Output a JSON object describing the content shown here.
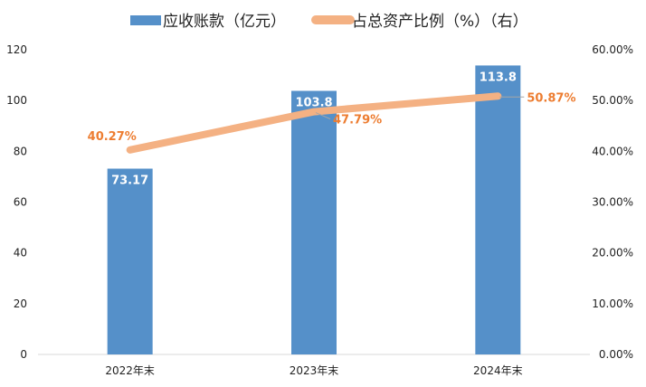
{
  "chart_data": {
    "type": "bar",
    "categories": [
      "2022年末",
      "2023年末",
      "2024年末"
    ],
    "series": [
      {
        "name": "应收账款（亿元）",
        "type": "bar",
        "axis": "left",
        "values": [
          73.17,
          103.8,
          113.8
        ],
        "labels": [
          "73.17",
          "103.8",
          "113.8"
        ],
        "color": "#5590c9"
      },
      {
        "name": "占总资产比例（%）（右）",
        "type": "line",
        "axis": "right",
        "values": [
          40.27,
          47.79,
          50.87
        ],
        "labels": [
          "40.27%",
          "47.79%",
          "50.87%"
        ],
        "color": "#f4b183",
        "label_color": "#ed7d31"
      }
    ],
    "y_left": {
      "min": 0,
      "max": 120,
      "ticks": [
        "0",
        "20",
        "40",
        "60",
        "80",
        "100",
        "120"
      ]
    },
    "y_right": {
      "min": 0,
      "max": 60,
      "ticks": [
        "0.00%",
        "10.00%",
        "20.00%",
        "30.00%",
        "40.00%",
        "50.00%",
        "60.00%"
      ]
    },
    "legend_position": "top",
    "grid": false,
    "axis_color": "#d9d9d9"
  }
}
